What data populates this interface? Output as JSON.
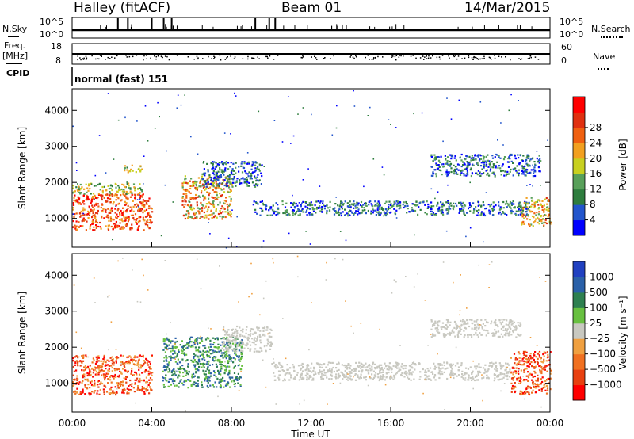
{
  "header": {
    "left": "Halley (fitACF)",
    "center": "Beam 01",
    "right": "14/Mar/2015"
  },
  "strips": {
    "nsky_label": "N.Sky",
    "nsky_ticks": [
      "10^5",
      "10^0"
    ],
    "nsearch_label": "N.Search",
    "freq_label": "Freq.",
    "freq_unit": "[MHz]",
    "freq_ticks": [
      "18",
      "8"
    ],
    "nave_label": "Nave",
    "nave_ticks": [
      "60",
      "0"
    ],
    "cpid_label": "CPID",
    "cpid_text": "normal (fast) 151"
  },
  "colors": {
    "power_scale": [
      "#0000ff",
      "#2255cc",
      "#2e7d3e",
      "#58a05a",
      "#c8d020",
      "#f2a020",
      "#f06010",
      "#e03010",
      "#ff0000"
    ],
    "velocity_scale": [
      "#ff0000",
      "#e84010",
      "#f07020",
      "#f0a040",
      "#c8c8c0",
      "#68c040",
      "#2e8050",
      "#2a60a8",
      "#2040c0"
    ]
  },
  "chart_data": [
    {
      "type": "heatmap",
      "title": "",
      "quantity": "Power",
      "xlabel": "",
      "ylabel": "Slant Range [km]",
      "x_ticks": [
        "00:00",
        "04:00",
        "08:00",
        "12:00",
        "16:00",
        "20:00",
        "00:00"
      ],
      "y_ticks": [
        1000,
        2000,
        3000,
        4000
      ],
      "ylim": [
        200,
        4600
      ],
      "xlim_hours": [
        0,
        24
      ],
      "colorbar": {
        "label": "Power [dB]",
        "ticks": [
          "4",
          "8",
          "12",
          "16",
          "20",
          "24",
          "28"
        ],
        "range": [
          0,
          30
        ]
      },
      "regions": [
        {
          "t": [
            0.0,
            4.0
          ],
          "r": [
            700,
            1700
          ],
          "level": "high"
        },
        {
          "t": [
            0.0,
            3.5
          ],
          "r": [
            1700,
            2000
          ],
          "level": "mid"
        },
        {
          "t": [
            2.5,
            3.5
          ],
          "r": [
            2300,
            2500
          ],
          "level": "mid"
        },
        {
          "t": [
            5.5,
            8.0
          ],
          "r": [
            1000,
            2200
          ],
          "level": "mid-high"
        },
        {
          "t": [
            6.5,
            9.5
          ],
          "r": [
            1900,
            2600
          ],
          "level": "low"
        },
        {
          "t": [
            9.0,
            23.0
          ],
          "r": [
            1100,
            1500
          ],
          "level": "low"
        },
        {
          "t": [
            18.0,
            23.5
          ],
          "r": [
            2200,
            2800
          ],
          "level": "low"
        },
        {
          "t": [
            22.5,
            24.0
          ],
          "r": [
            800,
            1600
          ],
          "level": "mid-high"
        }
      ]
    },
    {
      "type": "heatmap",
      "title": "",
      "quantity": "Velocity",
      "xlabel": "Time UT",
      "ylabel": "Slant Range [km]",
      "x_ticks": [
        "00:00",
        "04:00",
        "08:00",
        "12:00",
        "16:00",
        "20:00",
        "00:00"
      ],
      "y_ticks": [
        1000,
        2000,
        3000,
        4000
      ],
      "ylim": [
        200,
        4600
      ],
      "xlim_hours": [
        0,
        24
      ],
      "colorbar": {
        "label": "Velocity [m s⁻¹]",
        "ticks": [
          "1000",
          "500",
          "100",
          "25",
          "−25",
          "−100",
          "−500",
          "−1000"
        ],
        "range": [
          -1000,
          1000
        ]
      },
      "regions": [
        {
          "t": [
            0.0,
            4.0
          ],
          "r": [
            700,
            1800
          ],
          "level": "negative-high"
        },
        {
          "t": [
            4.5,
            8.5
          ],
          "r": [
            900,
            2300
          ],
          "level": "positive-mid"
        },
        {
          "t": [
            7.5,
            10.0
          ],
          "r": [
            1900,
            2600
          ],
          "level": "near-zero"
        },
        {
          "t": [
            10.0,
            22.0
          ],
          "r": [
            1100,
            1600
          ],
          "level": "near-zero"
        },
        {
          "t": [
            18.0,
            22.5
          ],
          "r": [
            2300,
            2800
          ],
          "level": "near-zero"
        },
        {
          "t": [
            22.0,
            24.0
          ],
          "r": [
            700,
            1900
          ],
          "level": "negative-high"
        }
      ]
    }
  ]
}
